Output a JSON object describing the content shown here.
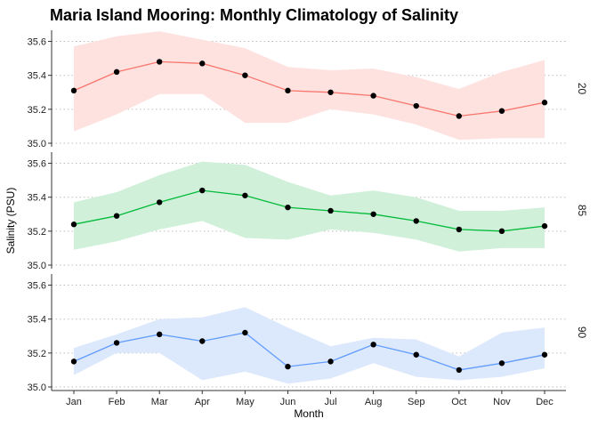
{
  "chart_data": {
    "type": "line",
    "title": "Maria Island Mooring: Monthly Climatology of Salinity",
    "xlabel": "Month",
    "ylabel": "Salinity (PSU)",
    "categories": [
      "Jan",
      "Feb",
      "Mar",
      "Apr",
      "May",
      "Jun",
      "Jul",
      "Aug",
      "Sep",
      "Oct",
      "Nov",
      "Dec"
    ],
    "ylim": [
      35.0,
      35.65
    ],
    "yticks": [
      "35.0",
      "35.2",
      "35.4",
      "35.6"
    ],
    "grid": "horizontal-dotted",
    "band": "ribbon around mean",
    "panels": [
      {
        "label": "20",
        "color": "#F8766D",
        "band_color": "#fde2e0",
        "mean": [
          35.31,
          35.42,
          35.48,
          35.47,
          35.4,
          35.31,
          35.3,
          35.28,
          35.22,
          35.16,
          35.19,
          35.24
        ],
        "lower": [
          35.07,
          35.17,
          35.29,
          35.29,
          35.12,
          35.12,
          35.2,
          35.17,
          35.11,
          35.02,
          35.03,
          35.03
        ],
        "upper": [
          35.57,
          35.63,
          35.66,
          35.61,
          35.56,
          35.45,
          35.43,
          35.44,
          35.39,
          35.32,
          35.42,
          35.49
        ]
      },
      {
        "label": "85",
        "color": "#00BA38",
        "band_color": "#d0f0da",
        "mean": [
          35.24,
          35.29,
          35.37,
          35.44,
          35.41,
          35.34,
          35.32,
          35.3,
          35.26,
          35.21,
          35.2,
          35.23
        ],
        "lower": [
          35.09,
          35.14,
          35.21,
          35.26,
          35.16,
          35.15,
          35.21,
          35.19,
          35.15,
          35.08,
          35.1,
          35.1
        ],
        "upper": [
          35.37,
          35.43,
          35.53,
          35.61,
          35.59,
          35.49,
          35.41,
          35.44,
          35.4,
          35.32,
          35.32,
          35.34
        ]
      },
      {
        "label": "90",
        "color": "#619CFF",
        "band_color": "#dce8fb",
        "mean": [
          35.15,
          35.26,
          35.31,
          35.27,
          35.32,
          35.12,
          35.15,
          35.25,
          35.19,
          35.1,
          35.14,
          35.19
        ],
        "lower": [
          35.07,
          35.2,
          35.2,
          35.04,
          35.09,
          35.02,
          35.05,
          35.14,
          35.06,
          35.04,
          35.06,
          35.11
        ],
        "upper": [
          35.23,
          35.31,
          35.4,
          35.41,
          35.47,
          35.35,
          35.24,
          35.29,
          35.28,
          35.18,
          35.32,
          35.35
        ]
      }
    ]
  }
}
